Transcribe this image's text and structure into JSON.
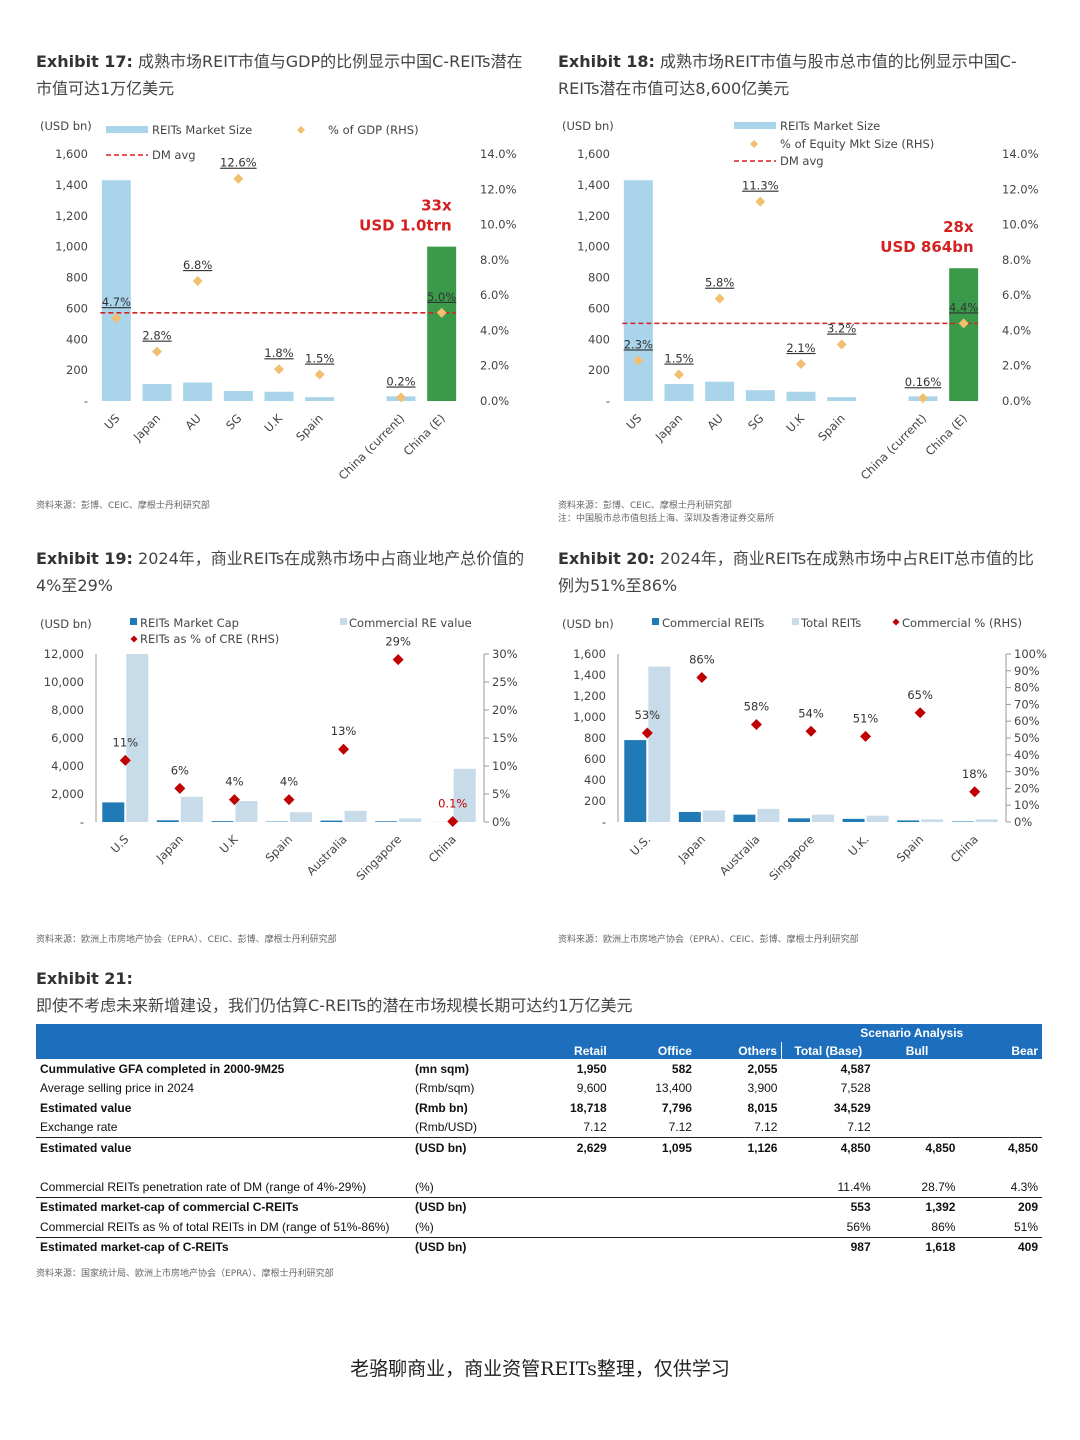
{
  "exhibits": {
    "e17": {
      "title_bold": "Exhibit 17:",
      "title_rest": " 成熟市场REIT市值与GDP的比例显示中国C-REITs潜在市值可达1万亿美元",
      "source": "资料来源：彭博、CEIC、摩根士丹利研究部"
    },
    "e18": {
      "title_bold": "Exhibit 18:",
      "title_rest": " 成熟市场REIT市值与股市总市值的比例显示中国C-REITs潜在市值可达8,600亿美元",
      "source": "资料来源：彭博、CEIC、摩根士丹利研究部",
      "note": "注：中国股市总市值包括上海、深圳及香港证券交易所"
    },
    "e19": {
      "title_bold": "Exhibit 19:",
      "title_rest": " 2024年，商业REITs在成熟市场中占商业地产总价值的4%至29%",
      "source": "资料来源：欧洲上市房地产协会（EPRA）、CEIC、彭博、摩根士丹利研究部"
    },
    "e20": {
      "title_bold": "Exhibit 20:",
      "title_rest": " 2024年，商业REITs在成熟市场中占REIT总市值的比例为51%至86%",
      "source": "资料来源：欧洲上市房地产协会（EPRA）、CEIC、彭博、摩根士丹利研究部"
    },
    "e21": {
      "title_bold": "Exhibit 21:",
      "title_rest": "即使不考虑未来新增建设，我们仍估算C-REITs的潜在市场规模长期可达约1万亿美元",
      "source": "资料来源：国家统计局、欧洲上市房地产协会（EPRA）、摩根士丹利研究部"
    }
  },
  "footer": "老骆聊商业，商业资管REITs整理，仅供学习",
  "chart_data": [
    {
      "id": "e17",
      "type": "bar",
      "unit_label": "(USD bn)",
      "legend": [
        "REITs Market Size",
        "% of GDP (RHS)",
        "DM avg"
      ],
      "categories": [
        "US",
        "Japan",
        "AU",
        "SG",
        "U.K",
        "Spain",
        "",
        "China (current)",
        "China (E)"
      ],
      "values": [
        1430,
        110,
        120,
        65,
        60,
        25,
        null,
        30,
        1000
      ],
      "pct": [
        4.7,
        2.8,
        6.8,
        12.6,
        1.8,
        1.5,
        null,
        0.2,
        5.0
      ],
      "pct_labels": [
        "4.7%",
        "2.8%",
        "6.8%",
        "12.6%",
        "1.8%",
        "1.5%",
        "",
        "0.2%",
        "5.0%"
      ],
      "dm_avg": 5.0,
      "ylim": [
        0,
        1600
      ],
      "y_ticks": [
        "-",
        "200",
        "400",
        "600",
        "800",
        "1,000",
        "1,200",
        "1,400",
        "1,600"
      ],
      "y2lim": [
        0,
        14
      ],
      "y2_ticks": [
        "0.0%",
        "2.0%",
        "4.0%",
        "6.0%",
        "8.0%",
        "10.0%",
        "12.0%",
        "14.0%"
      ],
      "callout": [
        "33x",
        "USD 1.0trn"
      ]
    },
    {
      "id": "e18",
      "type": "bar",
      "unit_label": "(USD bn)",
      "legend": [
        "REITs Market Size",
        "% of Equity Mkt Size (RHS)",
        "DM avg"
      ],
      "categories": [
        "US",
        "Japan",
        "AU",
        "SG",
        "U.K",
        "Spain",
        "",
        "China (current)",
        "China (E)"
      ],
      "values": [
        1430,
        110,
        125,
        70,
        60,
        25,
        null,
        30,
        860
      ],
      "pct": [
        2.3,
        1.5,
        5.8,
        11.3,
        2.1,
        3.2,
        null,
        0.16,
        4.4
      ],
      "pct_labels": [
        "2.3%",
        "1.5%",
        "5.8%",
        "11.3%",
        "2.1%",
        "3.2%",
        "",
        "0.16%",
        "4.4%"
      ],
      "dm_avg": 4.4,
      "ylim": [
        0,
        1600
      ],
      "y_ticks": [
        "-",
        "200",
        "400",
        "600",
        "800",
        "1,000",
        "1,200",
        "1,400",
        "1,600"
      ],
      "y2lim": [
        0,
        14
      ],
      "y2_ticks": [
        "0.0%",
        "2.0%",
        "4.0%",
        "6.0%",
        "8.0%",
        "10.0%",
        "12.0%",
        "14.0%"
      ],
      "callout": [
        "28x",
        "USD 864bn"
      ]
    },
    {
      "id": "e19",
      "type": "bar",
      "unit_label": "(USD bn)",
      "legend": [
        "REITs Market Cap",
        "Commercial RE value",
        "REITs as % of CRE (RHS)"
      ],
      "categories": [
        "U.S",
        "Japan",
        "U.K",
        "Spain",
        "Australia",
        "Singapore",
        "China"
      ],
      "series": [
        {
          "name": "REITs Market Cap",
          "values": [
            1400,
            120,
            60,
            30,
            100,
            50,
            5
          ]
        },
        {
          "name": "Commercial RE value",
          "values": [
            12000,
            1800,
            1500,
            700,
            800,
            250,
            3800
          ]
        }
      ],
      "pct": [
        11,
        6,
        4,
        4,
        13,
        29,
        0.1
      ],
      "pct_labels": [
        "11%",
        "6%",
        "4%",
        "4%",
        "13%",
        "29%",
        "0.1%"
      ],
      "ylim": [
        0,
        12000
      ],
      "y_ticks": [
        "-",
        "2,000",
        "4,000",
        "6,000",
        "8,000",
        "10,000",
        "12,000"
      ],
      "y2lim": [
        0,
        30
      ],
      "y2_ticks": [
        "0%",
        "5%",
        "10%",
        "15%",
        "20%",
        "25%",
        "30%"
      ]
    },
    {
      "id": "e20",
      "type": "bar",
      "unit_label": "(USD bn)",
      "legend": [
        "Commercial REITs",
        "Total REITs",
        "Commercial % (RHS)"
      ],
      "categories": [
        "U.S.",
        "Japan",
        "Australia",
        "Singapore",
        "U.K.",
        "Spain",
        "China"
      ],
      "series": [
        {
          "name": "Commercial REITs",
          "values": [
            780,
            95,
            70,
            35,
            30,
            15,
            5
          ]
        },
        {
          "name": "Total REITs",
          "values": [
            1480,
            110,
            125,
            70,
            60,
            25,
            25
          ]
        }
      ],
      "pct": [
        53,
        86,
        58,
        54,
        51,
        65,
        18
      ],
      "pct_labels": [
        "53%",
        "86%",
        "58%",
        "54%",
        "51%",
        "65%",
        "18%"
      ],
      "ylim": [
        0,
        1600
      ],
      "y_ticks": [
        "-",
        "200",
        "400",
        "600",
        "800",
        "1,000",
        "1,200",
        "1,400",
        "1,600"
      ],
      "y2lim": [
        0,
        100
      ],
      "y2_ticks": [
        "0%",
        "10%",
        "20%",
        "30%",
        "40%",
        "50%",
        "60%",
        "70%",
        "80%",
        "90%",
        "100%"
      ]
    },
    {
      "id": "e21",
      "type": "table",
      "header_group": "Scenario Analysis",
      "columns": [
        "",
        "",
        "Retail",
        "Office",
        "Others",
        "Total (Base)",
        "Bull",
        "Bear"
      ],
      "rows": [
        {
          "cells": [
            "Cummulative GFA completed in 2000-9M25",
            "(mn sqm)",
            "1,950",
            "582",
            "2,055",
            "4,587",
            "",
            ""
          ],
          "bold": true,
          "line": false
        },
        {
          "cells": [
            "Average selling price in  2024",
            "(Rmb/sqm)",
            "9,600",
            "13,400",
            "3,900",
            "7,528",
            "",
            ""
          ],
          "bold": false,
          "line": false
        },
        {
          "cells": [
            "Estimated value",
            "(Rmb bn)",
            "18,718",
            "7,796",
            "8,015",
            "34,529",
            "",
            ""
          ],
          "bold": true,
          "line": false
        },
        {
          "cells": [
            "Exchange rate",
            "(Rmb/USD)",
            "7.12",
            "7.12",
            "7.12",
            "7.12",
            "",
            ""
          ],
          "bold": false,
          "line": false
        },
        {
          "cells": [
            "Estimated value",
            "(USD bn)",
            "2,629",
            "1,095",
            "1,126",
            "4,850",
            "4,850",
            "4,850"
          ],
          "bold": true,
          "line": true
        },
        {
          "cells": [
            "",
            "",
            "",
            "",
            "",
            "",
            "",
            ""
          ],
          "bold": false,
          "line": false
        },
        {
          "cells": [
            "Commercial REITs penetration rate of DM (range of 4%-29%)",
            "(%)",
            "",
            "",
            "",
            "11.4%",
            "28.7%",
            "4.3%"
          ],
          "bold": false,
          "line": false
        },
        {
          "cells": [
            "Estimated market-cap of commercial C-REITs",
            "(USD bn)",
            "",
            "",
            "",
            "553",
            "1,392",
            "209"
          ],
          "bold": true,
          "line": true
        },
        {
          "cells": [
            "Commercial REITs as % of total REITs in DM (range of 51%-86%)",
            "(%)",
            "",
            "",
            "",
            "56%",
            "86%",
            "51%"
          ],
          "bold": false,
          "line": false
        },
        {
          "cells": [
            "Estimated market-cap of C-REITs",
            "(USD bn)",
            "",
            "",
            "",
            "987",
            "1,618",
            "409"
          ],
          "bold": true,
          "line": true
        }
      ]
    }
  ],
  "colors": {
    "light_bar": "#a9d4ea",
    "green_bar": "#3a9a4a",
    "diamond": "#f0c070",
    "dm_line": "#d42020",
    "red_marker": "#c00000",
    "dark_bar": "#1f7ab5",
    "pale_bar": "#c7dbe8",
    "table_header": "#1d6fbe",
    "callout": "#d42020"
  }
}
